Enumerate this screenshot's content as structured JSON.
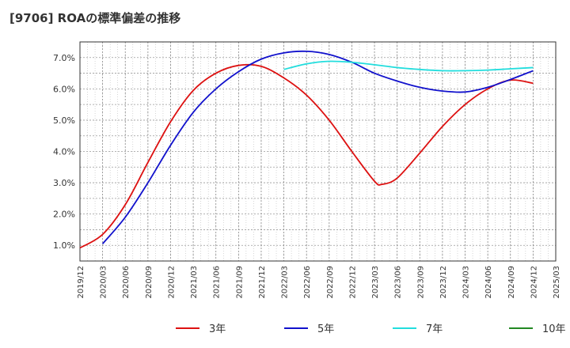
{
  "chart_data": {
    "type": "line",
    "title": "[9706]  ROAの標準偏差の推移",
    "xlabel": "",
    "ylabel": "",
    "x_ticks": [
      "2019/12",
      "2020/03",
      "2020/06",
      "2020/09",
      "2020/12",
      "2021/03",
      "2021/06",
      "2021/09",
      "2021/12",
      "2022/03",
      "2022/06",
      "2022/09",
      "2022/12",
      "2023/03",
      "2023/06",
      "2023/09",
      "2023/12",
      "2024/03",
      "2024/06",
      "2024/09",
      "2024/12",
      "2025/03"
    ],
    "y_ticks": [
      1.0,
      2.0,
      3.0,
      4.0,
      5.0,
      6.0,
      7.0
    ],
    "y_tick_labels": [
      "1.0%",
      "2.0%",
      "3.0%",
      "4.0%",
      "5.0%",
      "6.0%",
      "7.0%"
    ],
    "ylim": [
      0.5,
      7.5
    ],
    "grid": true,
    "legend_position": "bottom",
    "series": [
      {
        "name": "3年",
        "color": "#dd1111",
        "points": [
          {
            "x": "2019/12",
            "y": 0.92
          },
          {
            "x": "2020/03",
            "y": 1.35
          },
          {
            "x": "2020/06",
            "y": 2.3
          },
          {
            "x": "2020/09",
            "y": 3.65
          },
          {
            "x": "2020/12",
            "y": 4.95
          },
          {
            "x": "2021/03",
            "y": 5.95
          },
          {
            "x": "2021/06",
            "y": 6.5
          },
          {
            "x": "2021/09",
            "y": 6.75
          },
          {
            "x": "2021/12",
            "y": 6.72
          },
          {
            "x": "2022/03",
            "y": 6.35
          },
          {
            "x": "2022/06",
            "y": 5.8
          },
          {
            "x": "2022/09",
            "y": 5.0
          },
          {
            "x": "2022/12",
            "y": 4.0
          },
          {
            "x": "2023/03",
            "y": 3.05
          },
          {
            "x": "2023/04",
            "y": 2.95
          },
          {
            "x": "2023/06",
            "y": 3.15
          },
          {
            "x": "2023/09",
            "y": 3.95
          },
          {
            "x": "2023/12",
            "y": 4.8
          },
          {
            "x": "2024/03",
            "y": 5.5
          },
          {
            "x": "2024/06",
            "y": 6.0
          },
          {
            "x": "2024/09",
            "y": 6.28
          },
          {
            "x": "2024/12",
            "y": 6.18
          }
        ]
      },
      {
        "name": "5年",
        "color": "#1111cc",
        "points": [
          {
            "x": "2020/03",
            "y": 1.05
          },
          {
            "x": "2020/06",
            "y": 1.9
          },
          {
            "x": "2020/09",
            "y": 3.0
          },
          {
            "x": "2020/12",
            "y": 4.2
          },
          {
            "x": "2021/03",
            "y": 5.25
          },
          {
            "x": "2021/06",
            "y": 6.0
          },
          {
            "x": "2021/09",
            "y": 6.55
          },
          {
            "x": "2021/12",
            "y": 6.95
          },
          {
            "x": "2022/03",
            "y": 7.15
          },
          {
            "x": "2022/06",
            "y": 7.2
          },
          {
            "x": "2022/09",
            "y": 7.1
          },
          {
            "x": "2022/12",
            "y": 6.85
          },
          {
            "x": "2023/03",
            "y": 6.5
          },
          {
            "x": "2023/06",
            "y": 6.25
          },
          {
            "x": "2023/09",
            "y": 6.05
          },
          {
            "x": "2023/12",
            "y": 5.93
          },
          {
            "x": "2024/03",
            "y": 5.9
          },
          {
            "x": "2024/06",
            "y": 6.05
          },
          {
            "x": "2024/09",
            "y": 6.3
          },
          {
            "x": "2024/12",
            "y": 6.58
          }
        ]
      },
      {
        "name": "7年",
        "color": "#22dddd",
        "points": [
          {
            "x": "2022/03",
            "y": 6.62
          },
          {
            "x": "2022/06",
            "y": 6.8
          },
          {
            "x": "2022/09",
            "y": 6.88
          },
          {
            "x": "2022/12",
            "y": 6.85
          },
          {
            "x": "2023/03",
            "y": 6.77
          },
          {
            "x": "2023/06",
            "y": 6.68
          },
          {
            "x": "2023/09",
            "y": 6.62
          },
          {
            "x": "2023/12",
            "y": 6.58
          },
          {
            "x": "2024/03",
            "y": 6.58
          },
          {
            "x": "2024/06",
            "y": 6.6
          },
          {
            "x": "2024/09",
            "y": 6.64
          },
          {
            "x": "2024/12",
            "y": 6.68
          }
        ]
      },
      {
        "name": "10年",
        "color": "#228822",
        "points": []
      }
    ]
  }
}
